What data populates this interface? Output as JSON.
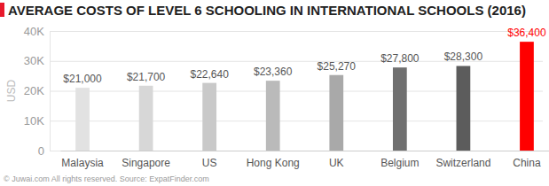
{
  "chart_data": {
    "type": "bar",
    "title": "AVERAGE COSTS OF LEVEL 6 SCHOOLING IN INTERNATIONAL SCHOOLS (2016)",
    "y_label": "USD",
    "annotations": [
      "© Juwai.com All rights reserved. Source: ExpatFinder.com"
    ],
    "categories": [
      "Malaysia",
      "Singapore",
      "US",
      "Hong Kong",
      "UK",
      "Belgium",
      "Switzerland",
      "China"
    ],
    "values": [
      21000,
      21700,
      22640,
      23360,
      25270,
      27800,
      28300,
      36400
    ],
    "value_labels": [
      "$21,000",
      "$21,700",
      "$22,640",
      "$23,360",
      "$25,270",
      "$27,800",
      "$28,300",
      "$36,400"
    ],
    "colors": [
      "#e2e2e2",
      "#d7d7d7",
      "#c9c9c9",
      "#bababa",
      "#a9a9a9",
      "#707070",
      "#5c5c5c",
      "#ff0000"
    ],
    "ylim": [
      0,
      40000
    ],
    "yticks": [
      0,
      {
        "value": 10000,
        "label": "10K"
      },
      {
        "value": 20000,
        "label": "20K"
      },
      {
        "value": 30000,
        "label": "30K"
      },
      {
        "value": 40000,
        "label": "40K"
      }
    ],
    "grid": true,
    "data_labels": true
  }
}
